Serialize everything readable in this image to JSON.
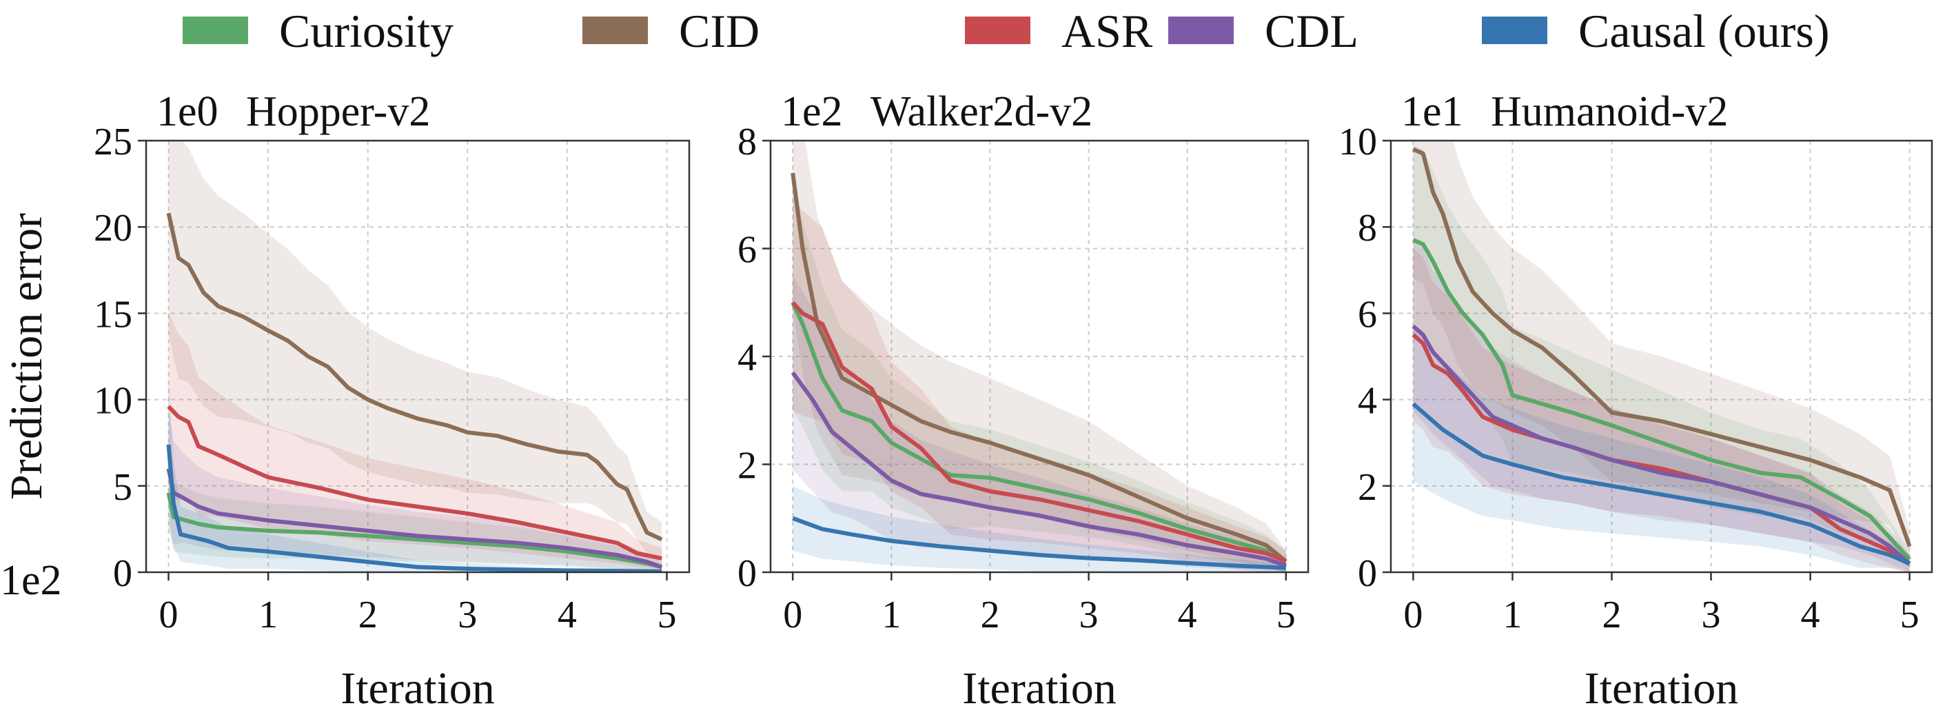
{
  "chart_data": {
    "type": "line",
    "legend": {
      "placement": "top",
      "entries": [
        {
          "name": "Curiosity",
          "color": "#5aa867"
        },
        {
          "name": "CID",
          "color": "#8c6d55"
        },
        {
          "name": "ASR",
          "color": "#c74a4f"
        },
        {
          "name": "CDL",
          "color": "#7d5aa6"
        },
        {
          "name": "Causal (ours)",
          "color": "#3575b0"
        }
      ]
    },
    "shared": {
      "ylabel": "Prediction error",
      "xlabel": "Iteration",
      "x_scale_label": "1e2",
      "xlim": [
        0,
        5
      ],
      "x_ticks": [
        0,
        1,
        2,
        3,
        4,
        5
      ],
      "grid": true
    },
    "panels": [
      {
        "title": "Hopper-v2",
        "y_scale_label": "1e0",
        "ylim": [
          0,
          25
        ],
        "y_ticks": [
          0,
          5,
          10,
          15,
          20,
          25
        ],
        "series": [
          {
            "name": "Curiosity",
            "x": [
              0,
              0.05,
              0.3,
              0.5,
              1,
              1.5,
              2,
              2.5,
              3,
              3.5,
              4,
              4.5,
              4.8,
              4.95
            ],
            "y": [
              4.6,
              3.2,
              2.8,
              2.6,
              2.4,
              2.3,
              2.1,
              1.9,
              1.7,
              1.5,
              1.2,
              0.8,
              0.5,
              0.3
            ],
            "band": [
              2.0,
              2.0,
              1.8,
              1.7,
              1.6,
              1.5,
              1.4,
              1.3,
              1.2,
              1.1,
              0.9,
              0.7,
              0.5,
              0.3
            ]
          },
          {
            "name": "CID",
            "x": [
              0,
              0.1,
              0.2,
              0.35,
              0.5,
              0.75,
              1,
              1.2,
              1.4,
              1.6,
              1.8,
              2,
              2.2,
              2.5,
              2.8,
              3,
              3.3,
              3.6,
              3.9,
              4.2,
              4.3,
              4.5,
              4.6,
              4.7,
              4.8,
              4.95
            ],
            "y": [
              20.8,
              18.2,
              17.8,
              16.2,
              15.4,
              14.8,
              14.0,
              13.4,
              12.5,
              11.9,
              10.7,
              10.0,
              9.5,
              8.9,
              8.5,
              8.1,
              7.9,
              7.4,
              7.0,
              6.8,
              6.4,
              5.1,
              4.8,
              3.5,
              2.3,
              1.9
            ],
            "band": [
              7.0,
              7.0,
              6.8,
              6.6,
              6.4,
              6.0,
              5.6,
              5.3,
              5.0,
              4.7,
              4.4,
              4.2,
              4.0,
              3.8,
              3.6,
              3.5,
              3.4,
              3.2,
              3.0,
              2.8,
              2.6,
              2.2,
              2.0,
              1.6,
              1.2,
              1.0
            ]
          },
          {
            "name": "ASR",
            "x": [
              0,
              0.1,
              0.2,
              0.3,
              0.5,
              0.8,
              1,
              1.5,
              2,
              2.5,
              3,
              3.5,
              4,
              4.5,
              4.7,
              4.95
            ],
            "y": [
              9.6,
              9.0,
              8.7,
              7.3,
              6.8,
              6.0,
              5.5,
              4.9,
              4.2,
              3.8,
              3.4,
              2.9,
              2.3,
              1.7,
              1.1,
              0.8
            ],
            "band": [
              5.5,
              4.8,
              4.4,
              4.0,
              3.6,
              3.2,
              3.0,
              2.7,
              2.4,
              2.2,
              2.0,
              1.8,
              1.5,
              1.2,
              0.8,
              0.6
            ]
          },
          {
            "name": "CDL",
            "x": [
              0,
              0.05,
              0.15,
              0.3,
              0.5,
              1,
              1.5,
              2,
              2.5,
              3,
              3.5,
              4,
              4.5,
              4.8,
              4.95
            ],
            "y": [
              6.0,
              4.6,
              4.3,
              3.8,
              3.4,
              3.0,
              2.7,
              2.4,
              2.1,
              1.9,
              1.7,
              1.4,
              1.0,
              0.6,
              0.3
            ],
            "band": [
              3.5,
              3.0,
              2.6,
              2.3,
              2.1,
              1.9,
              1.7,
              1.5,
              1.4,
              1.3,
              1.2,
              1.0,
              0.8,
              0.5,
              0.3
            ]
          },
          {
            "name": "Causal (ours)",
            "x": [
              0,
              0.05,
              0.12,
              0.4,
              0.6,
              1,
              1.5,
              2,
              2.5,
              3,
              3.5,
              4,
              4.5,
              4.95
            ],
            "y": [
              7.4,
              4.0,
              2.2,
              1.8,
              1.4,
              1.2,
              0.9,
              0.6,
              0.3,
              0.2,
              0.15,
              0.1,
              0.08,
              0.05
            ],
            "band": [
              4.0,
              2.5,
              1.6,
              1.4,
              1.2,
              1.0,
              0.8,
              0.6,
              0.4,
              0.3,
              0.2,
              0.15,
              0.1,
              0.05
            ]
          }
        ]
      },
      {
        "title": "Walker2d-v2",
        "y_scale_label": "1e2",
        "ylim": [
          0,
          8
        ],
        "y_ticks": [
          0,
          2,
          4,
          6,
          8
        ],
        "series": [
          {
            "name": "Curiosity",
            "x": [
              0,
              0.1,
              0.3,
              0.5,
              0.8,
              1,
              1.3,
              1.6,
              2,
              2.5,
              3,
              3.5,
              4,
              4.5,
              4.8,
              5
            ],
            "y": [
              5.0,
              4.6,
              3.6,
              3.0,
              2.8,
              2.4,
              2.1,
              1.8,
              1.75,
              1.55,
              1.35,
              1.1,
              0.8,
              0.55,
              0.4,
              0.2
            ],
            "band": [
              2.0,
              1.9,
              1.7,
              1.5,
              1.3,
              1.2,
              1.1,
              1.0,
              0.9,
              0.8,
              0.7,
              0.6,
              0.5,
              0.4,
              0.3,
              0.2
            ]
          },
          {
            "name": "CID",
            "x": [
              0,
              0.1,
              0.25,
              0.5,
              0.8,
              1,
              1.3,
              1.6,
              2,
              2.5,
              3,
              3.5,
              4,
              4.5,
              4.8,
              5
            ],
            "y": [
              7.4,
              6.0,
              4.6,
              3.6,
              3.3,
              3.1,
              2.8,
              2.6,
              2.4,
              2.1,
              1.8,
              1.4,
              1.0,
              0.7,
              0.5,
              0.2
            ],
            "band": [
              2.5,
              2.3,
              2.0,
              1.8,
              1.6,
              1.5,
              1.4,
              1.3,
              1.2,
              1.1,
              1.0,
              0.8,
              0.6,
              0.5,
              0.4,
              0.2
            ]
          },
          {
            "name": "ASR",
            "x": [
              0,
              0.1,
              0.3,
              0.5,
              0.8,
              1,
              1.3,
              1.6,
              2,
              2.5,
              3,
              3.5,
              4,
              4.5,
              4.8,
              5
            ],
            "y": [
              5.0,
              4.8,
              4.6,
              3.8,
              3.4,
              2.7,
              2.3,
              1.7,
              1.5,
              1.35,
              1.15,
              0.95,
              0.7,
              0.45,
              0.35,
              0.2
            ],
            "band": [
              2.0,
              1.9,
              1.8,
              1.6,
              1.4,
              1.2,
              1.1,
              1.0,
              0.9,
              0.8,
              0.7,
              0.6,
              0.5,
              0.4,
              0.3,
              0.2
            ]
          },
          {
            "name": "CDL",
            "x": [
              0,
              0.2,
              0.4,
              0.6,
              0.8,
              1,
              1.3,
              1.6,
              2,
              2.5,
              3,
              3.5,
              4,
              4.5,
              4.8,
              5
            ],
            "y": [
              3.7,
              3.2,
              2.6,
              2.3,
              2.0,
              1.7,
              1.45,
              1.35,
              1.2,
              1.05,
              0.85,
              0.7,
              0.5,
              0.35,
              0.25,
              0.12
            ],
            "band": [
              1.8,
              1.7,
              1.5,
              1.3,
              1.2,
              1.1,
              1.0,
              0.9,
              0.8,
              0.7,
              0.6,
              0.5,
              0.4,
              0.3,
              0.25,
              0.12
            ]
          },
          {
            "name": "Causal (ours)",
            "x": [
              0,
              0.3,
              0.6,
              1,
              1.5,
              2,
              2.5,
              3,
              3.5,
              4,
              4.5,
              5
            ],
            "y": [
              1.0,
              0.8,
              0.7,
              0.58,
              0.48,
              0.4,
              0.32,
              0.26,
              0.22,
              0.17,
              0.12,
              0.08
            ],
            "band": [
              0.6,
              0.55,
              0.5,
              0.45,
              0.4,
              0.35,
              0.3,
              0.25,
              0.2,
              0.16,
              0.12,
              0.08
            ]
          }
        ]
      },
      {
        "title": "Humanoid-v2",
        "y_scale_label": "1e1",
        "ylim": [
          0,
          10
        ],
        "y_ticks": [
          0,
          2,
          4,
          6,
          8,
          10
        ],
        "series": [
          {
            "name": "Curiosity",
            "x": [
              0,
              0.1,
              0.2,
              0.35,
              0.5,
              0.7,
              0.9,
              1,
              1.3,
              1.6,
              2,
              2.5,
              3,
              3.5,
              3.9,
              4.3,
              4.6,
              4.8,
              5
            ],
            "y": [
              7.7,
              7.6,
              7.2,
              6.5,
              6.0,
              5.5,
              4.8,
              4.1,
              3.9,
              3.7,
              3.4,
              3.0,
              2.6,
              2.3,
              2.2,
              1.7,
              1.3,
              0.8,
              0.3
            ],
            "band": [
              2.2,
              2.2,
              2.1,
              2.0,
              1.9,
              1.8,
              1.7,
              1.6,
              1.5,
              1.4,
              1.3,
              1.2,
              1.1,
              1.0,
              0.9,
              0.8,
              0.6,
              0.4,
              0.2
            ]
          },
          {
            "name": "CID",
            "x": [
              0,
              0.1,
              0.2,
              0.3,
              0.45,
              0.6,
              0.8,
              1,
              1.3,
              1.6,
              2,
              2.5,
              3,
              3.5,
              4,
              4.5,
              4.8,
              5
            ],
            "y": [
              9.8,
              9.7,
              8.8,
              8.3,
              7.2,
              6.5,
              6.0,
              5.6,
              5.2,
              4.6,
              3.7,
              3.5,
              3.2,
              2.9,
              2.6,
              2.2,
              1.9,
              0.6
            ],
            "band": [
              3.0,
              3.0,
              2.8,
              2.6,
              2.4,
              2.2,
              2.0,
              1.9,
              1.8,
              1.7,
              1.6,
              1.5,
              1.4,
              1.3,
              1.2,
              1.0,
              0.8,
              0.4
            ]
          },
          {
            "name": "ASR",
            "x": [
              0,
              0.1,
              0.2,
              0.35,
              0.5,
              0.7,
              1,
              1.3,
              1.6,
              2,
              2.5,
              3,
              3.5,
              4,
              4.3,
              4.6,
              4.8,
              5
            ],
            "y": [
              5.5,
              5.3,
              4.8,
              4.6,
              4.2,
              3.6,
              3.3,
              3.1,
              2.9,
              2.6,
              2.4,
              2.1,
              1.8,
              1.5,
              1.0,
              0.7,
              0.5,
              0.2
            ],
            "band": [
              2.0,
              2.0,
              1.9,
              1.8,
              1.7,
              1.6,
              1.5,
              1.4,
              1.3,
              1.2,
              1.1,
              1.0,
              0.9,
              0.8,
              0.6,
              0.5,
              0.4,
              0.2
            ]
          },
          {
            "name": "CDL",
            "x": [
              0,
              0.1,
              0.2,
              0.4,
              0.6,
              0.8,
              1,
              1.3,
              1.6,
              2,
              2.5,
              3,
              3.5,
              4,
              4.3,
              4.6,
              4.8,
              5
            ],
            "y": [
              5.7,
              5.5,
              5.1,
              4.6,
              4.1,
              3.6,
              3.4,
              3.1,
              2.9,
              2.6,
              2.3,
              2.1,
              1.8,
              1.5,
              1.2,
              0.9,
              0.6,
              0.2
            ],
            "band": [
              2.0,
              2.0,
              1.9,
              1.8,
              1.7,
              1.6,
              1.5,
              1.4,
              1.3,
              1.2,
              1.1,
              1.0,
              0.9,
              0.8,
              0.6,
              0.5,
              0.4,
              0.2
            ]
          },
          {
            "name": "Causal (ours)",
            "x": [
              0,
              0.15,
              0.3,
              0.5,
              0.7,
              1,
              1.5,
              2,
              2.5,
              3,
              3.5,
              4,
              4.5,
              4.8,
              5
            ],
            "y": [
              3.9,
              3.6,
              3.3,
              3.0,
              2.7,
              2.5,
              2.2,
              2.0,
              1.8,
              1.6,
              1.4,
              1.1,
              0.6,
              0.4,
              0.2
            ],
            "band": [
              1.8,
              1.7,
              1.6,
              1.5,
              1.4,
              1.3,
              1.2,
              1.1,
              1.0,
              0.9,
              0.8,
              0.7,
              0.5,
              0.3,
              0.2
            ]
          }
        ]
      }
    ]
  }
}
